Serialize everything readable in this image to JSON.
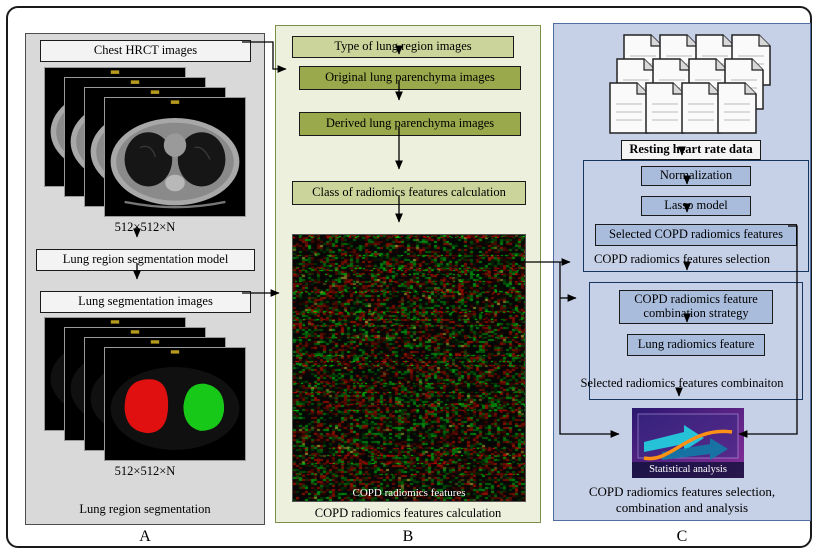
{
  "panels": {
    "a": {
      "label": "A",
      "chest_box": "Chest HRCT images",
      "dims_top": "512×512×N",
      "model_box": "Lung region segmentation model",
      "seg_box": "Lung segmentation images",
      "dims_bottom": "512×512×N",
      "caption": "Lung region segmentation"
    },
    "b": {
      "label": "B",
      "type_box": "Type of lung region  images",
      "original_box": "Original lung parenchyma images",
      "derived_box": "Derived lung parenchyma images",
      "class_box": "Class of radiomics features calculation",
      "heatmap_caption": "COPD radiomics features",
      "caption": "COPD radiomics features calculation"
    },
    "c": {
      "label": "C",
      "data_label": "Resting heart rate data",
      "normalization_box": "Normalization",
      "lasso_box": "Lasso model",
      "selected_box": "Selected COPD radiomics features",
      "selection_caption": "COPD radiomics features selection",
      "combination_box": "COPD radiomics feature combination strategy",
      "lung_feature_box": "Lung radiomics feature",
      "combination_caption": "Selected radiomics features combinaiton",
      "stat_caption": "Statistical analysis",
      "caption_line1": "COPD radiomics features selection,",
      "caption_line2": "combination and analysis"
    }
  },
  "icons": {
    "ct_stack": "chest-ct-slice-stack",
    "seg_stack": "segmented-lung-slice-stack",
    "docs": "document-pile-icon",
    "heatmap": "radiomics-feature-heatmap",
    "stat_image": "statistical-analysis-plot"
  },
  "colors": {
    "panel_a_bg": "#d9d9d9",
    "panel_a_border": "#4d4d4d",
    "panel_b_bg": "#ecf0dd",
    "panel_b_border": "#7c8f4a",
    "panel_c_bg": "#c6d0e6",
    "panel_c_border": "#4f6ea0",
    "gray_box": "#f3f3f3",
    "olive_box": "#cbd49a",
    "green_box": "#9aa94b",
    "blue_box": "#a9bcdc",
    "seg_red": "#e01010",
    "seg_green": "#18c818"
  }
}
